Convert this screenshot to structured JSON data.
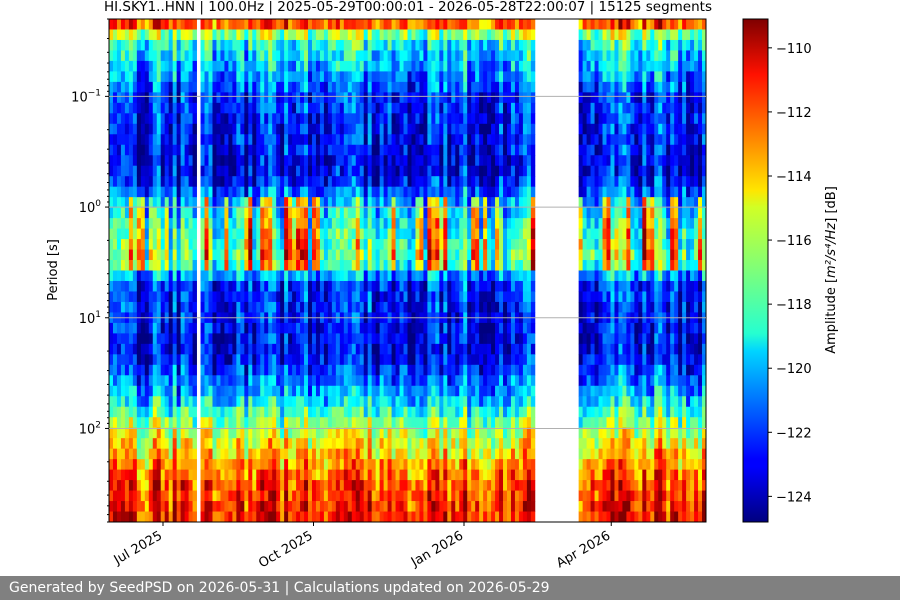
{
  "chart_data": {
    "type": "heatmap",
    "title": "HI.SKY1..HNN | 100.0Hz | 2025-05-29T00:00:01 - 2026-05-28T22:00:07 | 15125 segments",
    "xlabel": "",
    "ylabel": "Period [s]",
    "x_range": [
      "2025-05-29T00:00:01",
      "2026-05-28T22:00:07"
    ],
    "x_ticks": [
      {
        "value": "2025-07-01",
        "label": "Jul 2025"
      },
      {
        "value": "2025-10-01",
        "label": "Oct 2025"
      },
      {
        "value": "2026-01-01",
        "label": "Jan 2026"
      },
      {
        "value": "2026-04-01",
        "label": "Apr 2026"
      }
    ],
    "y_scale": "log",
    "y_inverted": true,
    "y_range": [
      0.02,
      700
    ],
    "y_ticks": [
      {
        "value": 0.1,
        "base": "10",
        "exp": "−1"
      },
      {
        "value": 1,
        "base": "10",
        "exp": "0"
      },
      {
        "value": 10,
        "base": "10",
        "exp": "1"
      },
      {
        "value": 100,
        "base": "10",
        "exp": "2"
      }
    ],
    "grid": true,
    "data_gaps": [
      {
        "start": "2025-07-22",
        "end": "2025-07-24"
      },
      {
        "start": "2026-02-14",
        "end": "2026-03-12"
      }
    ],
    "colorbar": {
      "label_main": "Amplitude [",
      "label_math": "m²/s⁴/Hz",
      "label_end": "] [dB]",
      "range": [
        -124.8,
        -109.1
      ],
      "ticks": [
        "−110",
        "−112",
        "−114",
        "−116",
        "−118",
        "−120",
        "−122",
        "−124"
      ],
      "tick_values": [
        -110,
        -112,
        -114,
        -116,
        -118,
        -120,
        -122,
        -124
      ],
      "colormap": "jet"
    },
    "period_profile_db": [
      {
        "period": 0.02,
        "db": -110
      },
      {
        "period": 0.03,
        "db": -118
      },
      {
        "period": 0.1,
        "db": -122
      },
      {
        "period": 0.5,
        "db": -123
      },
      {
        "period": 1.2,
        "db": -119
      },
      {
        "period": 3,
        "db": -117
      },
      {
        "period": 5,
        "db": -122
      },
      {
        "period": 20,
        "db": -123
      },
      {
        "period": 50,
        "db": -120
      },
      {
        "period": 100,
        "db": -116
      },
      {
        "period": 300,
        "db": -112
      },
      {
        "period": 700,
        "db": -111
      }
    ]
  },
  "footer": {
    "text": "Generated by SeedPSD on 2026-05-31 | Calculations updated on 2026-05-29"
  }
}
